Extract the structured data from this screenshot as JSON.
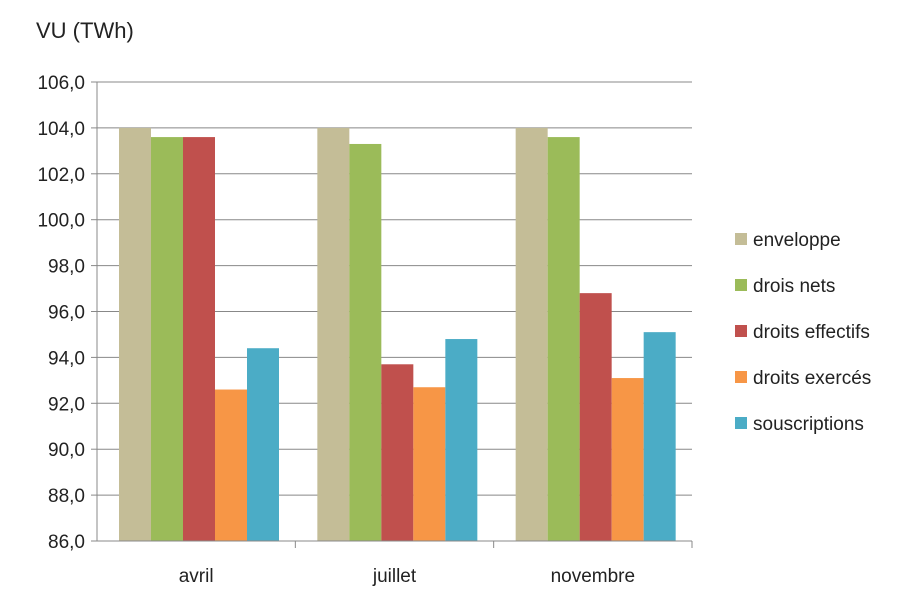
{
  "chart_data": {
    "type": "bar",
    "ylabel": "VU (TWh)",
    "categories": [
      "avril",
      "juillet",
      "novembre"
    ],
    "ylim": [
      86,
      106
    ],
    "ytick_step": 2,
    "yticks": [
      "86,0",
      "88,0",
      "90,0",
      "92,0",
      "94,0",
      "96,0",
      "98,0",
      "100,0",
      "102,0",
      "104,0",
      "106,0"
    ],
    "grid": true,
    "legend_position": "right",
    "series": [
      {
        "name": "enveloppe",
        "color": "#C4BD97",
        "values": [
          104.0,
          104.0,
          104.0
        ]
      },
      {
        "name": "drois nets",
        "color": "#9BBB59",
        "values": [
          103.6,
          103.3,
          103.6
        ]
      },
      {
        "name": "droits effectifs",
        "color": "#C0504D",
        "values": [
          103.6,
          93.7,
          96.8
        ]
      },
      {
        "name": "droits exercés",
        "color": "#F79646",
        "values": [
          92.6,
          92.7,
          93.1
        ]
      },
      {
        "name": "souscriptions",
        "color": "#4BACC6",
        "values": [
          94.4,
          94.8,
          95.1
        ]
      }
    ]
  }
}
